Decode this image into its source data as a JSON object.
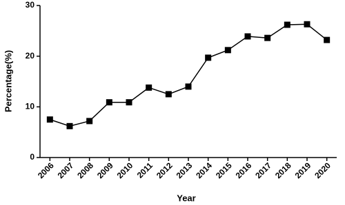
{
  "chart_data": {
    "type": "line",
    "x_label": "Year",
    "y_label": "Percentage(%)",
    "categories": [
      "2006",
      "2007",
      "2008",
      "2009",
      "2010",
      "2011",
      "2012",
      "2013",
      "2014",
      "2015",
      "2016",
      "2017",
      "2018",
      "2019",
      "2020"
    ],
    "values": [
      7.5,
      6.2,
      7.2,
      10.9,
      10.9,
      13.8,
      12.5,
      14.0,
      19.7,
      21.2,
      23.9,
      23.6,
      26.2,
      26.3,
      23.2
    ],
    "color": "#000000",
    "ylim": [
      0,
      30
    ],
    "yticks": [
      0,
      10,
      20,
      30
    ],
    "grid": false
  }
}
